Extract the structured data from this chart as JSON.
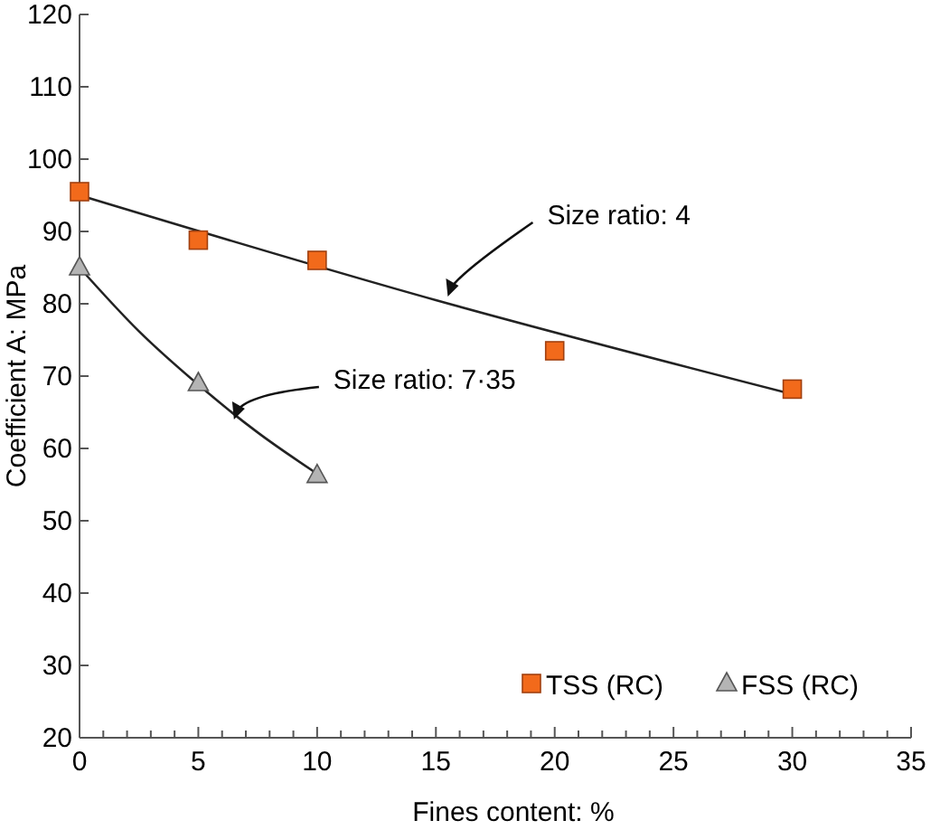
{
  "chart_data": {
    "type": "scatter",
    "xlabel": "Fines content: %",
    "ylabel": "Coefficient A: MPa",
    "xlim": [
      0,
      35
    ],
    "ylim": [
      20,
      120
    ],
    "xticks": [
      0,
      {
        "value": 1,
        "label": null
      },
      {
        "value": 2,
        "label": null
      },
      {
        "value": 3,
        "label": null
      },
      {
        "value": 4,
        "label": null
      },
      5,
      {
        "value": 6,
        "label": null
      },
      {
        "value": 7,
        "label": null
      },
      {
        "value": 8,
        "label": null
      },
      {
        "value": 9,
        "label": null
      },
      10,
      {
        "value": 11,
        "label": null
      },
      {
        "value": 12,
        "label": null
      },
      {
        "value": 13,
        "label": null
      },
      {
        "value": 14,
        "label": null
      },
      15,
      {
        "value": 16,
        "label": null
      },
      {
        "value": 17,
        "label": null
      },
      {
        "value": 18,
        "label": null
      },
      {
        "value": 19,
        "label": null
      },
      20,
      {
        "value": 21,
        "label": null
      },
      {
        "value": 22,
        "label": null
      },
      {
        "value": 23,
        "label": null
      },
      {
        "value": 24,
        "label": null
      },
      25,
      {
        "value": 26,
        "label": null
      },
      {
        "value": 27,
        "label": null
      },
      {
        "value": 28,
        "label": null
      },
      {
        "value": 29,
        "label": null
      },
      30,
      {
        "value": 31,
        "label": null
      },
      {
        "value": 32,
        "label": null
      },
      {
        "value": 33,
        "label": null
      },
      {
        "value": 34,
        "label": null
      },
      35
    ],
    "yticks": [
      20,
      30,
      40,
      50,
      60,
      70,
      80,
      90,
      100,
      110,
      120
    ],
    "grid": false,
    "legend": "bottom right",
    "series": [
      {
        "type": "line",
        "color": "#222222",
        "marker": "none",
        "x": [
          0,
          15,
          30
        ],
        "values": [
          95,
          80.5,
          67.5
        ]
      },
      {
        "type": "line",
        "color": "#222222",
        "marker": "none",
        "x": [
          0,
          2.5,
          5,
          7.5,
          10
        ],
        "values": [
          85,
          76.2,
          68.8,
          62.2,
          56.5
        ]
      },
      {
        "name": "TSS (RC)",
        "color": "#f26a1b",
        "marker": "square",
        "x": [
          0,
          5,
          10,
          20,
          30
        ],
        "values": [
          95.5,
          88.8,
          86,
          73.5,
          68.2
        ]
      },
      {
        "name": "FSS (RC)",
        "color": "#b4b4b4",
        "marker": "triangle",
        "x": [
          0,
          5,
          10
        ],
        "values": [
          85,
          69,
          56.3
        ]
      }
    ],
    "annotations": [
      {
        "text": "Size ratio: 4",
        "x": 15.5,
        "y": 81
      },
      {
        "text": "Size ratio: 7·35",
        "x": 6.5,
        "y": 64
      }
    ]
  }
}
